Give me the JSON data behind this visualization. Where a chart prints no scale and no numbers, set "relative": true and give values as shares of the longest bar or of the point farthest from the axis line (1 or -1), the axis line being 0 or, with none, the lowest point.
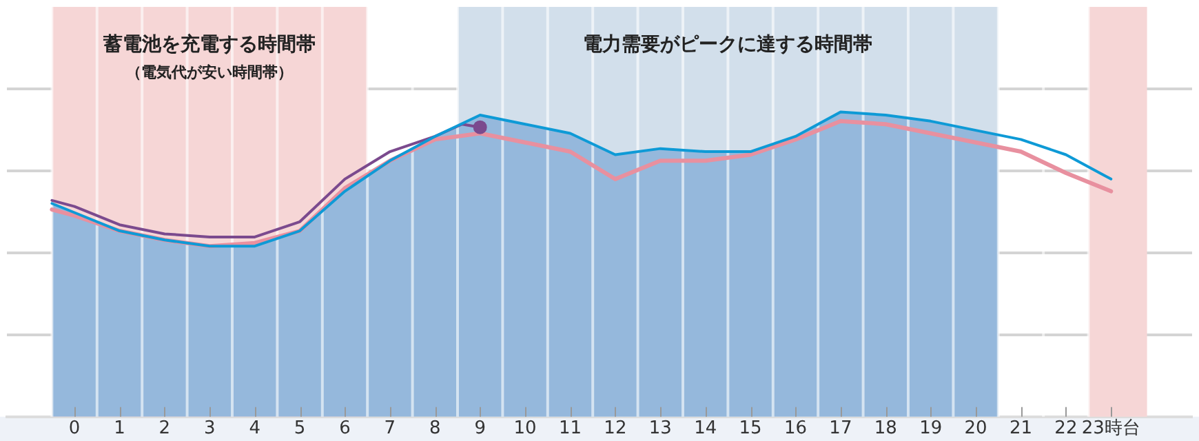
{
  "chart_data": {
    "type": "line",
    "relative": true,
    "xlim": [
      -1.5,
      24.8
    ],
    "xticks": [
      0,
      1,
      2,
      3,
      4,
      5,
      6,
      7,
      8,
      9,
      10,
      11,
      12,
      13,
      14,
      15,
      16,
      17,
      18,
      19,
      20,
      21,
      22,
      {
        "value": 23,
        "label": "23時台"
      }
    ],
    "grid": true,
    "legend": false,
    "marker": "none",
    "line_style": "solid",
    "bands": [
      {
        "axis": "x",
        "from": -0.5,
        "to": 6.5,
        "label": "蓄電池を充電する時間帯",
        "color": "#f6d6d6"
      },
      {
        "axis": "x",
        "from": 8.5,
        "to": 20.5,
        "label": "電力需要がピークに達する時間帯",
        "color": "#d2dfeb"
      },
      {
        "axis": "x",
        "from": 22.5,
        "to": 23.8,
        "label": null,
        "color": "#f6d6d6"
      }
    ],
    "annotations": [
      "（電気代が安い時間帯）"
    ],
    "series": [
      {
        "type": "area",
        "color": "#95b8dc",
        "x": [
          -0.5,
          0,
          1,
          2,
          3,
          4,
          5,
          6,
          7,
          8,
          9,
          10,
          11,
          12,
          13,
          14,
          15,
          16,
          17,
          18,
          19,
          20,
          20.5
        ],
        "values": [
          0.7,
          0.67,
          0.61,
          0.58,
          0.56,
          0.56,
          0.61,
          0.74,
          0.84,
          0.92,
          0.99,
          0.96,
          0.93,
          0.86,
          0.88,
          0.87,
          0.87,
          0.92,
          1.0,
          0.99,
          0.97,
          0.94,
          0.925
        ]
      },
      {
        "color": "#0e9ad6",
        "x": [
          -0.5,
          0,
          1,
          2,
          3,
          4,
          5,
          6,
          7,
          8,
          9,
          10,
          11,
          12,
          13,
          14,
          15,
          16,
          17,
          18,
          19,
          20,
          21,
          22,
          23
        ],
        "values": [
          0.7,
          0.67,
          0.61,
          0.58,
          0.56,
          0.56,
          0.61,
          0.74,
          0.84,
          0.92,
          0.99,
          0.96,
          0.93,
          0.86,
          0.88,
          0.87,
          0.87,
          0.92,
          1.0,
          0.99,
          0.97,
          0.94,
          0.91,
          0.86,
          0.78
        ]
      },
      {
        "color": "#e8909f",
        "x": [
          -0.5,
          0,
          1,
          2,
          3,
          4,
          5,
          6,
          7,
          8,
          9,
          10,
          11,
          12,
          13,
          14,
          15,
          16,
          17,
          18,
          19,
          20,
          21,
          22,
          23
        ],
        "values": [
          0.68,
          0.66,
          0.61,
          0.58,
          0.56,
          0.57,
          0.61,
          0.75,
          0.84,
          0.91,
          0.93,
          0.9,
          0.87,
          0.78,
          0.84,
          0.84,
          0.86,
          0.91,
          0.97,
          0.96,
          0.93,
          0.9,
          0.87,
          0.8,
          0.74
        ]
      },
      {
        "color": "#7b4a8e",
        "x": [
          -0.5,
          0,
          1,
          2,
          3,
          4,
          5,
          6,
          7,
          8,
          8.6,
          9
        ],
        "values": [
          0.71,
          0.69,
          0.63,
          0.6,
          0.59,
          0.59,
          0.64,
          0.78,
          0.87,
          0.92,
          0.96,
          0.95
        ]
      },
      {
        "type": "scatter",
        "color": "#7b4a8e",
        "marker": "circle",
        "x": [
          9
        ],
        "values": [
          0.95
        ]
      }
    ]
  }
}
